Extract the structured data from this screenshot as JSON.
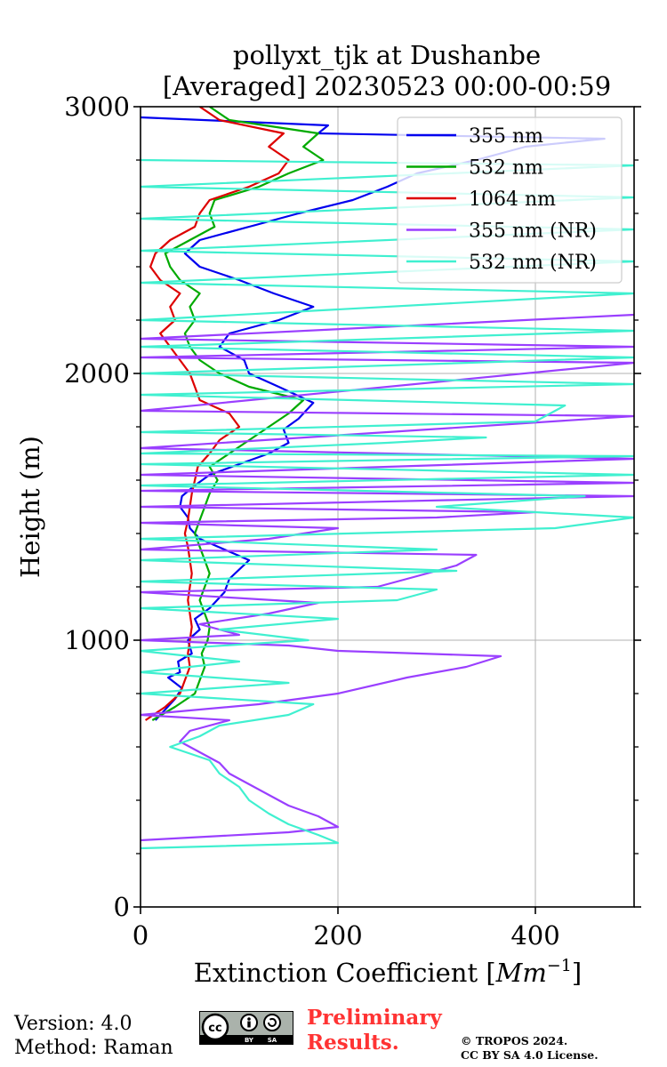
{
  "chart_data": {
    "type": "line",
    "title": "pollyxt_tjk at Dushanbe",
    "subtitle": "[Averaged] 20230523 00:00-00:59",
    "xlabel": "Extinction Coefficient [",
    "xlabel_unit": "Mm",
    "xlabel_unit_sup": "−1",
    "xlabel_close": "]",
    "ylabel": "Height (m)",
    "xlim": [
      0,
      500
    ],
    "ylim": [
      0,
      3000
    ],
    "xticks": [
      0,
      200,
      400
    ],
    "yticks": [
      0,
      1000,
      2000,
      3000
    ],
    "grid": true,
    "legend_position": "top-right",
    "series": [
      {
        "name": "355 nm",
        "color": "#0000ee",
        "points": [
          [
            15,
            700
          ],
          [
            25,
            740
          ],
          [
            35,
            780
          ],
          [
            42,
            820
          ],
          [
            28,
            860
          ],
          [
            40,
            880
          ],
          [
            38,
            920
          ],
          [
            52,
            950
          ],
          [
            48,
            1000
          ],
          [
            60,
            1040
          ],
          [
            55,
            1080
          ],
          [
            70,
            1120
          ],
          [
            85,
            1180
          ],
          [
            90,
            1230
          ],
          [
            110,
            1300
          ],
          [
            85,
            1340
          ],
          [
            60,
            1380
          ],
          [
            50,
            1420
          ],
          [
            48,
            1460
          ],
          [
            40,
            1500
          ],
          [
            42,
            1540
          ],
          [
            55,
            1580
          ],
          [
            70,
            1620
          ],
          [
            100,
            1660
          ],
          [
            130,
            1700
          ],
          [
            150,
            1740
          ],
          [
            145,
            1790
          ],
          [
            160,
            1830
          ],
          [
            175,
            1890
          ],
          [
            140,
            1950
          ],
          [
            110,
            2000
          ],
          [
            105,
            2050
          ],
          [
            80,
            2100
          ],
          [
            90,
            2150
          ],
          [
            140,
            2200
          ],
          [
            175,
            2250
          ],
          [
            135,
            2300
          ],
          [
            100,
            2350
          ],
          [
            60,
            2400
          ],
          [
            45,
            2450
          ],
          [
            60,
            2500
          ],
          [
            110,
            2550
          ],
          [
            160,
            2600
          ],
          [
            215,
            2650
          ],
          [
            250,
            2700
          ],
          [
            280,
            2750
          ],
          [
            340,
            2800
          ],
          [
            390,
            2850
          ],
          [
            470,
            2880
          ],
          [
            180,
            2900
          ],
          [
            190,
            2930
          ],
          [
            0,
            2960
          ]
        ]
      },
      {
        "name": "532 nm",
        "color": "#00aa00",
        "points": [
          [
            12,
            700
          ],
          [
            35,
            750
          ],
          [
            55,
            800
          ],
          [
            60,
            850
          ],
          [
            65,
            900
          ],
          [
            62,
            950
          ],
          [
            68,
            1000
          ],
          [
            70,
            1050
          ],
          [
            65,
            1100
          ],
          [
            60,
            1150
          ],
          [
            65,
            1200
          ],
          [
            70,
            1250
          ],
          [
            65,
            1300
          ],
          [
            60,
            1350
          ],
          [
            55,
            1400
          ],
          [
            60,
            1450
          ],
          [
            65,
            1500
          ],
          [
            70,
            1550
          ],
          [
            78,
            1600
          ],
          [
            70,
            1650
          ],
          [
            90,
            1700
          ],
          [
            110,
            1750
          ],
          [
            130,
            1800
          ],
          [
            150,
            1850
          ],
          [
            165,
            1900
          ],
          [
            110,
            1950
          ],
          [
            80,
            2000
          ],
          [
            60,
            2050
          ],
          [
            50,
            2100
          ],
          [
            45,
            2150
          ],
          [
            55,
            2200
          ],
          [
            50,
            2250
          ],
          [
            60,
            2300
          ],
          [
            40,
            2350
          ],
          [
            30,
            2400
          ],
          [
            25,
            2450
          ],
          [
            50,
            2500
          ],
          [
            75,
            2550
          ],
          [
            70,
            2600
          ],
          [
            75,
            2650
          ],
          [
            120,
            2700
          ],
          [
            150,
            2750
          ],
          [
            185,
            2800
          ],
          [
            165,
            2850
          ],
          [
            180,
            2900
          ],
          [
            90,
            2950
          ],
          [
            70,
            3000
          ]
        ]
      },
      {
        "name": "1064 nm",
        "color": "#dd0000",
        "points": [
          [
            5,
            700
          ],
          [
            25,
            750
          ],
          [
            40,
            800
          ],
          [
            45,
            850
          ],
          [
            50,
            900
          ],
          [
            48,
            950
          ],
          [
            50,
            1000
          ],
          [
            52,
            1050
          ],
          [
            50,
            1100
          ],
          [
            48,
            1150
          ],
          [
            50,
            1200
          ],
          [
            52,
            1250
          ],
          [
            50,
            1300
          ],
          [
            48,
            1350
          ],
          [
            45,
            1400
          ],
          [
            48,
            1450
          ],
          [
            50,
            1500
          ],
          [
            52,
            1550
          ],
          [
            55,
            1600
          ],
          [
            58,
            1650
          ],
          [
            70,
            1700
          ],
          [
            80,
            1750
          ],
          [
            100,
            1800
          ],
          [
            90,
            1850
          ],
          [
            60,
            1900
          ],
          [
            55,
            1950
          ],
          [
            50,
            2000
          ],
          [
            40,
            2050
          ],
          [
            30,
            2100
          ],
          [
            20,
            2150
          ],
          [
            35,
            2200
          ],
          [
            30,
            2250
          ],
          [
            40,
            2300
          ],
          [
            20,
            2350
          ],
          [
            10,
            2400
          ],
          [
            15,
            2450
          ],
          [
            30,
            2500
          ],
          [
            55,
            2550
          ],
          [
            60,
            2600
          ],
          [
            70,
            2650
          ],
          [
            110,
            2700
          ],
          [
            140,
            2750
          ],
          [
            150,
            2800
          ],
          [
            130,
            2850
          ],
          [
            145,
            2900
          ],
          [
            80,
            2950
          ],
          [
            60,
            3000
          ]
        ]
      },
      {
        "name": "355 nm (NR)",
        "color": "#9a3fff",
        "points": [
          [
            0,
            250
          ],
          [
            150,
            280
          ],
          [
            200,
            300
          ],
          [
            180,
            340
          ],
          [
            150,
            380
          ],
          [
            130,
            420
          ],
          [
            110,
            460
          ],
          [
            90,
            500
          ],
          [
            80,
            540
          ],
          [
            60,
            580
          ],
          [
            40,
            620
          ],
          [
            50,
            660
          ],
          [
            90,
            700
          ],
          [
            0,
            720
          ],
          [
            120,
            760
          ],
          [
            200,
            800
          ],
          [
            270,
            860
          ],
          [
            330,
            900
          ],
          [
            365,
            940
          ],
          [
            200,
            960
          ],
          [
            150,
            980
          ],
          [
            0,
            1000
          ],
          [
            100,
            1020
          ],
          [
            60,
            1060
          ],
          [
            130,
            1100
          ],
          [
            180,
            1140
          ],
          [
            0,
            1180
          ],
          [
            240,
            1200
          ],
          [
            280,
            1240
          ],
          [
            320,
            1280
          ],
          [
            340,
            1320
          ],
          [
            0,
            1340
          ],
          [
            130,
            1380
          ],
          [
            200,
            1420
          ],
          [
            0,
            1440
          ],
          [
            300,
            1460
          ],
          [
            400,
            1480
          ],
          [
            0,
            1500
          ],
          [
            500,
            1540
          ],
          [
            0,
            1560
          ],
          [
            500,
            1590
          ],
          [
            0,
            1620
          ],
          [
            500,
            1680
          ],
          [
            0,
            1720
          ],
          [
            500,
            1840
          ],
          [
            0,
            1860
          ],
          [
            500,
            2040
          ],
          [
            0,
            2060
          ],
          [
            500,
            2100
          ],
          [
            0,
            2130
          ],
          [
            500,
            2220
          ]
        ]
      },
      {
        "name": "532 nm (NR)",
        "color": "#40f0d0",
        "points": [
          [
            0,
            220
          ],
          [
            200,
            240
          ],
          [
            180,
            270
          ],
          [
            150,
            310
          ],
          [
            130,
            350
          ],
          [
            110,
            400
          ],
          [
            100,
            450
          ],
          [
            80,
            500
          ],
          [
            70,
            550
          ],
          [
            30,
            600
          ],
          [
            60,
            640
          ],
          [
            80,
            680
          ],
          [
            150,
            720
          ],
          [
            175,
            760
          ],
          [
            0,
            800
          ],
          [
            150,
            840
          ],
          [
            0,
            880
          ],
          [
            100,
            920
          ],
          [
            0,
            960
          ],
          [
            170,
            1000
          ],
          [
            80,
            1040
          ],
          [
            200,
            1080
          ],
          [
            0,
            1120
          ],
          [
            260,
            1150
          ],
          [
            300,
            1190
          ],
          [
            0,
            1220
          ],
          [
            320,
            1260
          ],
          [
            0,
            1300
          ],
          [
            300,
            1340
          ],
          [
            0,
            1380
          ],
          [
            420,
            1420
          ],
          [
            500,
            1460
          ],
          [
            300,
            1500
          ],
          [
            450,
            1540
          ],
          [
            0,
            1580
          ],
          [
            500,
            1620
          ],
          [
            0,
            1660
          ],
          [
            500,
            1690
          ],
          [
            0,
            1700
          ],
          [
            250,
            1740
          ],
          [
            350,
            1760
          ],
          [
            0,
            1780
          ],
          [
            400,
            1820
          ],
          [
            430,
            1880
          ],
          [
            0,
            1920
          ],
          [
            500,
            1960
          ],
          [
            0,
            2000
          ],
          [
            500,
            2060
          ],
          [
            0,
            2100
          ],
          [
            500,
            2160
          ],
          [
            0,
            2200
          ],
          [
            500,
            2300
          ],
          [
            0,
            2340
          ],
          [
            500,
            2420
          ],
          [
            0,
            2460
          ],
          [
            500,
            2540
          ],
          [
            0,
            2580
          ],
          [
            500,
            2660
          ],
          [
            0,
            2700
          ],
          [
            500,
            2780
          ],
          [
            0,
            2800
          ]
        ]
      }
    ]
  },
  "footer": {
    "version": "Version: 4.0",
    "method": "Method: Raman",
    "preliminary_line1": "Preliminary",
    "preliminary_line2": "Results.",
    "copyright_line1": "© TROPOS 2024.",
    "copyright_line2": "CC BY SA 4.0 License.",
    "cc_by_label": "BY",
    "cc_sa_label": "SA"
  }
}
